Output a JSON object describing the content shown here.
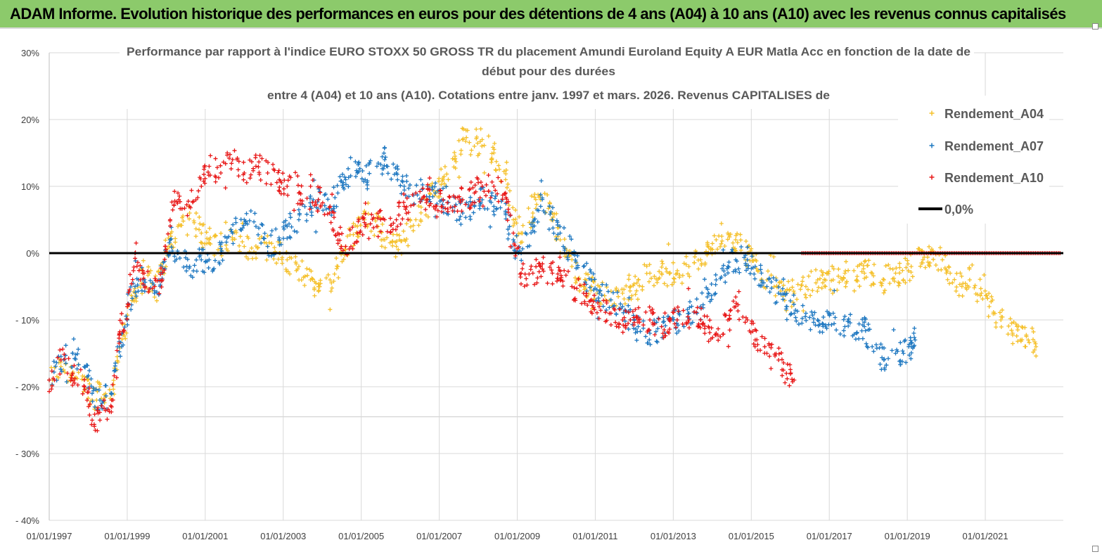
{
  "header": {
    "title": "ADAM Informe. Evolution historique des performances en euros pour des détentions de 4 ans (A04) à 10 ans (A10) avec les revenus connus capitalisés"
  },
  "colors": {
    "banner": "#8cca6b",
    "A04": "#f5c02a",
    "A07": "#1f78c1",
    "A10": "#e81717",
    "zero_line": "#000000"
  },
  "chart_data": {
    "type": "scatter",
    "title_lines": [
      "Performance par rapport à l'indice EURO STOXX 50 GROSS TR  du placement Amundi Euroland Equity A EUR Matla Acc  en fonction de la date de",
      "début pour des durées",
      "entre 4 (A04) et 10 ans (A10). Cotations entre janv. 1997 et mars. 2026.  Revenus CAPITALISES de"
    ],
    "x_tick_labels": [
      "01/01/1997",
      "01/01/1999",
      "01/01/2001",
      "01/01/2003",
      "01/01/2005",
      "01/01/2007",
      "01/01/2009",
      "01/01/2011",
      "01/01/2013",
      "01/01/2015",
      "01/01/2017",
      "01/01/2019",
      "01/01/2021"
    ],
    "x_range": [
      "1997-01-01",
      "2023-01-01"
    ],
    "y_tick_labels": [
      "30%",
      "20%",
      "10%",
      "0%",
      "- 10%",
      "- 20%",
      "- 30%",
      "- 40%"
    ],
    "y_range": [
      -40,
      30
    ],
    "y_unit": "%",
    "grid": true,
    "legend_position": "top-right",
    "legend": [
      "Rendement_A04",
      "Rendement_A07",
      "Rendement_A10",
      "0,0%"
    ],
    "series": [
      {
        "name": "Rendement_A04",
        "marker": "+",
        "x_end": "2022.3",
        "points": [
          [
            "1997.0",
            -19
          ],
          [
            "1997.3",
            -17
          ],
          [
            "1997.6",
            -18
          ],
          [
            "1997.9",
            -19
          ],
          [
            "1998.1",
            -22
          ],
          [
            "1998.3",
            -20
          ],
          [
            "1998.6",
            -22
          ],
          [
            "1998.8",
            -14
          ],
          [
            "1999.0",
            -10
          ],
          [
            "1999.2",
            -6
          ],
          [
            "1999.4",
            -3
          ],
          [
            "1999.7",
            -5
          ],
          [
            "1999.9",
            -2
          ],
          [
            "2000.1",
            2
          ],
          [
            "2000.3",
            4
          ],
          [
            "2000.6",
            6
          ],
          [
            "2000.9",
            3
          ],
          [
            "2001.1",
            2
          ],
          [
            "2001.4",
            1
          ],
          [
            "2001.7",
            2
          ],
          [
            "2002.0",
            1
          ],
          [
            "2002.3",
            0
          ],
          [
            "2002.6",
            1
          ],
          [
            "2002.9",
            0
          ],
          [
            "2003.1",
            -1
          ],
          [
            "2003.4",
            -2
          ],
          [
            "2003.7",
            -4
          ],
          [
            "2003.9",
            -5
          ],
          [
            "2004.2",
            -4
          ],
          [
            "2004.4",
            -2
          ],
          [
            "2004.6",
            1
          ],
          [
            "2004.9",
            4
          ],
          [
            "2005.1",
            6
          ],
          [
            "2005.4",
            4
          ],
          [
            "2005.6",
            2
          ],
          [
            "2005.9",
            1
          ],
          [
            "2006.1",
            2
          ],
          [
            "2006.4",
            5
          ],
          [
            "2006.7",
            8
          ],
          [
            "2006.9",
            9
          ],
          [
            "2007.1",
            11
          ],
          [
            "2007.4",
            14
          ],
          [
            "2007.6",
            17
          ],
          [
            "2007.9",
            16
          ],
          [
            "2008.1",
            17
          ],
          [
            "2008.4",
            15
          ],
          [
            "2008.7",
            11
          ],
          [
            "2008.9",
            5
          ],
          [
            "2009.1",
            3
          ],
          [
            "2009.4",
            6
          ],
          [
            "2009.6",
            8
          ],
          [
            "2009.9",
            6
          ],
          [
            "2010.1",
            2
          ],
          [
            "2010.4",
            -2
          ],
          [
            "2010.7",
            -5
          ],
          [
            "2010.9",
            -5
          ],
          [
            "2011.1",
            -6
          ],
          [
            "2011.4",
            -7
          ],
          [
            "2011.7",
            -6
          ],
          [
            "2011.9",
            -5
          ],
          [
            "2012.1",
            -4
          ],
          [
            "2012.4",
            -3
          ],
          [
            "2012.7",
            -3
          ],
          [
            "2012.9",
            -3
          ],
          [
            "2013.1",
            -3
          ],
          [
            "2013.4",
            -2
          ],
          [
            "2013.7",
            -1
          ],
          [
            "2013.9",
            0
          ],
          [
            "2014.1",
            2
          ],
          [
            "2014.4",
            3
          ],
          [
            "2014.6",
            2
          ],
          [
            "2014.9",
            0
          ],
          [
            "2015.1",
            -1
          ],
          [
            "2015.4",
            -4
          ],
          [
            "2015.7",
            -5
          ],
          [
            "2015.9",
            -6
          ],
          [
            "2016.1",
            -6
          ],
          [
            "2016.4",
            -5
          ],
          [
            "2016.7",
            -4
          ],
          [
            "2016.9",
            -5
          ],
          [
            "2017.1",
            -4
          ],
          [
            "2017.4",
            -3
          ],
          [
            "2017.7",
            -4
          ],
          [
            "2017.9",
            -3
          ],
          [
            "2018.1",
            -3
          ],
          [
            "2018.4",
            -4
          ],
          [
            "2018.7",
            -3
          ],
          [
            "2018.9",
            -4
          ],
          [
            "2019.1",
            -2
          ],
          [
            "2019.4",
            -1
          ],
          [
            "2019.6",
            0
          ],
          [
            "2019.9",
            -1
          ],
          [
            "2020.1",
            -3
          ],
          [
            "2020.4",
            -5
          ],
          [
            "2020.6",
            -4
          ],
          [
            "2020.9",
            -6
          ],
          [
            "2021.1",
            -8
          ],
          [
            "2021.4",
            -10
          ],
          [
            "2021.7",
            -12
          ],
          [
            "2021.9",
            -13
          ],
          [
            "2022.1",
            -13
          ],
          [
            "2022.3",
            -14
          ]
        ]
      },
      {
        "name": "Rendement_A07",
        "marker": "+",
        "x_end": "2019.2",
        "points": [
          [
            "1997.0",
            -19
          ],
          [
            "1997.3",
            -16
          ],
          [
            "1997.6",
            -15
          ],
          [
            "1997.9",
            -17
          ],
          [
            "1998.1",
            -21
          ],
          [
            "1998.3",
            -22
          ],
          [
            "1998.6",
            -21
          ],
          [
            "1998.8",
            -14
          ],
          [
            "1999.0",
            -10
          ],
          [
            "1999.2",
            -5
          ],
          [
            "1999.4",
            -4
          ],
          [
            "1999.7",
            -6
          ],
          [
            "1999.9",
            -3
          ],
          [
            "2000.1",
            2
          ],
          [
            "2000.3",
            0
          ],
          [
            "2000.6",
            -2
          ],
          [
            "2000.9",
            -1
          ],
          [
            "2001.1",
            -1
          ],
          [
            "2001.4",
            0
          ],
          [
            "2001.7",
            3
          ],
          [
            "2002.0",
            5
          ],
          [
            "2002.3",
            4
          ],
          [
            "2002.6",
            1
          ],
          [
            "2002.9",
            2
          ],
          [
            "2003.1",
            4
          ],
          [
            "2003.4",
            5
          ],
          [
            "2003.7",
            7
          ],
          [
            "2003.9",
            8
          ],
          [
            "2004.2",
            7
          ],
          [
            "2004.4",
            9
          ],
          [
            "2004.6",
            11
          ],
          [
            "2004.9",
            12
          ],
          [
            "2005.1",
            11
          ],
          [
            "2005.4",
            13
          ],
          [
            "2005.6",
            14
          ],
          [
            "2005.9",
            12
          ],
          [
            "2006.1",
            10
          ],
          [
            "2006.4",
            9
          ],
          [
            "2006.7",
            10
          ],
          [
            "2006.9",
            9
          ],
          [
            "2007.1",
            8
          ],
          [
            "2007.4",
            7
          ],
          [
            "2007.6",
            6
          ],
          [
            "2007.9",
            7
          ],
          [
            "2008.1",
            8
          ],
          [
            "2008.4",
            7
          ],
          [
            "2008.7",
            6
          ],
          [
            "2008.9",
            2
          ],
          [
            "2009.1",
            0
          ],
          [
            "2009.4",
            4
          ],
          [
            "2009.6",
            7
          ],
          [
            "2009.9",
            5
          ],
          [
            "2010.1",
            3
          ],
          [
            "2010.4",
            0
          ],
          [
            "2010.7",
            -2
          ],
          [
            "2010.9",
            -4
          ],
          [
            "2011.1",
            -6
          ],
          [
            "2011.4",
            -7
          ],
          [
            "2011.7",
            -8
          ],
          [
            "2011.9",
            -10
          ],
          [
            "2012.1",
            -11
          ],
          [
            "2012.4",
            -12
          ],
          [
            "2012.7",
            -11
          ],
          [
            "2012.9",
            -10
          ],
          [
            "2013.1",
            -10
          ],
          [
            "2013.4",
            -9
          ],
          [
            "2013.7",
            -8
          ],
          [
            "2013.9",
            -6
          ],
          [
            "2014.1",
            -4
          ],
          [
            "2014.4",
            -2
          ],
          [
            "2014.6",
            -1
          ],
          [
            "2014.9",
            -1
          ],
          [
            "2015.1",
            -2
          ],
          [
            "2015.4",
            -5
          ],
          [
            "2015.7",
            -6
          ],
          [
            "2015.9",
            -8
          ],
          [
            "2016.1",
            -9
          ],
          [
            "2016.4",
            -9
          ],
          [
            "2016.7",
            -10
          ],
          [
            "2016.9",
            -11
          ],
          [
            "2017.1",
            -9
          ],
          [
            "2017.4",
            -11
          ],
          [
            "2017.7",
            -12
          ],
          [
            "2017.9",
            -11
          ],
          [
            "2018.1",
            -14
          ],
          [
            "2018.4",
            -16
          ],
          [
            "2018.7",
            -15
          ],
          [
            "2018.9",
            -15
          ],
          [
            "2019.1",
            -14
          ],
          [
            "2019.2",
            -13
          ]
        ]
      },
      {
        "name": "Rendement_A10",
        "marker": "+",
        "x_end": "2016.1",
        "points": [
          [
            "1997.0",
            -19
          ],
          [
            "1997.3",
            -16
          ],
          [
            "1997.6",
            -18
          ],
          [
            "1997.9",
            -20
          ],
          [
            "1998.1",
            -25
          ],
          [
            "1998.3",
            -25
          ],
          [
            "1998.6",
            -22
          ],
          [
            "1998.8",
            -12
          ],
          [
            "1999.0",
            -8
          ],
          [
            "1999.2",
            0
          ],
          [
            "1999.4",
            -3
          ],
          [
            "1999.7",
            -5
          ],
          [
            "1999.9",
            -4
          ],
          [
            "2000.1",
            5
          ],
          [
            "2000.3",
            9
          ],
          [
            "2000.6",
            7
          ],
          [
            "2000.9",
            10
          ],
          [
            "2001.1",
            13
          ],
          [
            "2001.4",
            12
          ],
          [
            "2001.7",
            14
          ],
          [
            "2002.0",
            12
          ],
          [
            "2002.3",
            13
          ],
          [
            "2002.6",
            12
          ],
          [
            "2002.9",
            11
          ],
          [
            "2003.1",
            10
          ],
          [
            "2003.4",
            9
          ],
          [
            "2003.7",
            10
          ],
          [
            "2003.9",
            8
          ],
          [
            "2004.2",
            7
          ],
          [
            "2004.4",
            3
          ],
          [
            "2004.6",
            1
          ],
          [
            "2004.9",
            3
          ],
          [
            "2005.1",
            4
          ],
          [
            "2005.4",
            4
          ],
          [
            "2005.6",
            5
          ],
          [
            "2005.9",
            5
          ],
          [
            "2006.1",
            7
          ],
          [
            "2006.4",
            9
          ],
          [
            "2006.7",
            8
          ],
          [
            "2006.9",
            7
          ],
          [
            "2007.1",
            8
          ],
          [
            "2007.4",
            7
          ],
          [
            "2007.6",
            8
          ],
          [
            "2007.9",
            9
          ],
          [
            "2008.1",
            10
          ],
          [
            "2008.4",
            10
          ],
          [
            "2008.7",
            9
          ],
          [
            "2008.9",
            3
          ],
          [
            "2009.1",
            -3
          ],
          [
            "2009.4",
            -3
          ],
          [
            "2009.6",
            -2
          ],
          [
            "2009.9",
            -3
          ],
          [
            "2010.1",
            -4
          ],
          [
            "2010.4",
            -5
          ],
          [
            "2010.7",
            -6
          ],
          [
            "2010.9",
            -7
          ],
          [
            "2011.1",
            -8
          ],
          [
            "2011.4",
            -9
          ],
          [
            "2011.7",
            -10
          ],
          [
            "2011.9",
            -10
          ],
          [
            "2012.1",
            -10
          ],
          [
            "2012.4",
            -10
          ],
          [
            "2012.7",
            -11
          ],
          [
            "2012.9",
            -10
          ],
          [
            "2013.1",
            -10
          ],
          [
            "2013.4",
            -10
          ],
          [
            "2013.7",
            -10
          ],
          [
            "2013.9",
            -11
          ],
          [
            "2014.1",
            -12
          ],
          [
            "2014.4",
            -10
          ],
          [
            "2014.6",
            -8
          ],
          [
            "2014.9",
            -10
          ],
          [
            "2015.1",
            -13
          ],
          [
            "2015.4",
            -15
          ],
          [
            "2015.7",
            -16
          ],
          [
            "2015.9",
            -18
          ],
          [
            "2016.1",
            -19
          ]
        ]
      },
      {
        "name": "0,0%",
        "type": "line",
        "x": [
          "1997.0",
          "2023.0"
        ],
        "values": [
          0,
          0
        ]
      }
    ]
  }
}
